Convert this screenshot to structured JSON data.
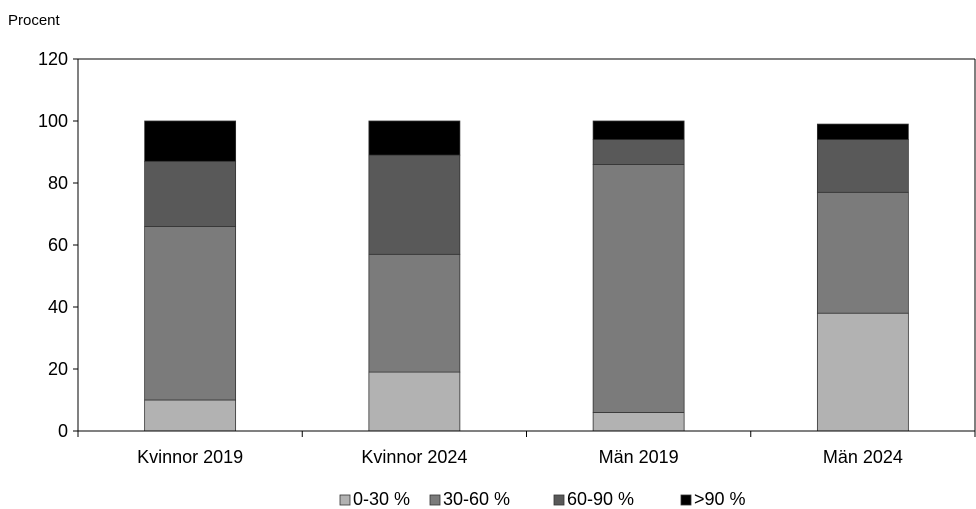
{
  "chart_data": {
    "type": "bar",
    "stacked": true,
    "unit_label": "Procent",
    "categories": [
      "Kvinnor 2019",
      "Kvinnor 2024",
      "Män 2019",
      "Män 2024"
    ],
    "y_ticks": [
      "0",
      "20",
      "40",
      "60",
      "80",
      "100",
      "120"
    ],
    "ylim": [
      0,
      120
    ],
    "grid": false,
    "legend_position": "bottom",
    "series": [
      {
        "name": "0-30 %",
        "color": "#b2b2b2",
        "values": [
          10,
          19,
          6,
          38
        ]
      },
      {
        "name": "30-60 %",
        "color": "#7b7b7b",
        "values": [
          56,
          38,
          80,
          39
        ]
      },
      {
        "name": "60-90 %",
        "color": "#595959",
        "values": [
          21,
          32,
          8,
          17
        ]
      },
      {
        "name": ">90 %",
        "color": "#000000",
        "values": [
          13,
          11,
          6,
          5
        ]
      }
    ]
  }
}
